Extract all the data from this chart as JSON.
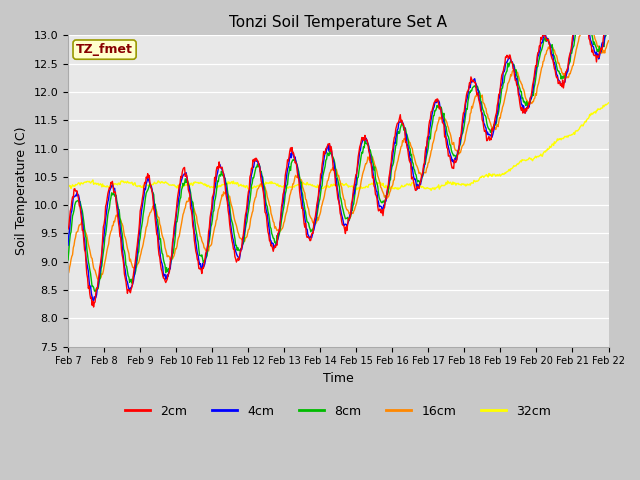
{
  "title": "Tonzi Soil Temperature Set A",
  "xlabel": "Time",
  "ylabel": "Soil Temperature (C)",
  "ylim": [
    7.5,
    13.0
  ],
  "yticks": [
    7.5,
    8.0,
    8.5,
    9.0,
    9.5,
    10.0,
    10.5,
    11.0,
    11.5,
    12.0,
    12.5,
    13.0
  ],
  "colors": {
    "2cm": "#ff0000",
    "4cm": "#0000ff",
    "8cm": "#00bb00",
    "16cm": "#ff8800",
    "32cm": "#ffff00"
  },
  "annotation_text": "TZ_fmet",
  "annotation_bg": "#ffffcc",
  "annotation_fg": "#880000",
  "grid_color": "#ffffff",
  "legend_labels": [
    "2cm",
    "4cm",
    "8cm",
    "16cm",
    "32cm"
  ],
  "x_tick_labels": [
    "Feb 7",
    "Feb 8",
    "Feb 9",
    "Feb 10",
    "Feb 11",
    "Feb 12",
    "Feb 13",
    "Feb 14",
    "Feb 15",
    "Feb 16",
    "Feb 17",
    "Feb 18",
    "Feb 19",
    "Feb 20",
    "Feb 21",
    "Feb 22"
  ],
  "num_points": 720
}
